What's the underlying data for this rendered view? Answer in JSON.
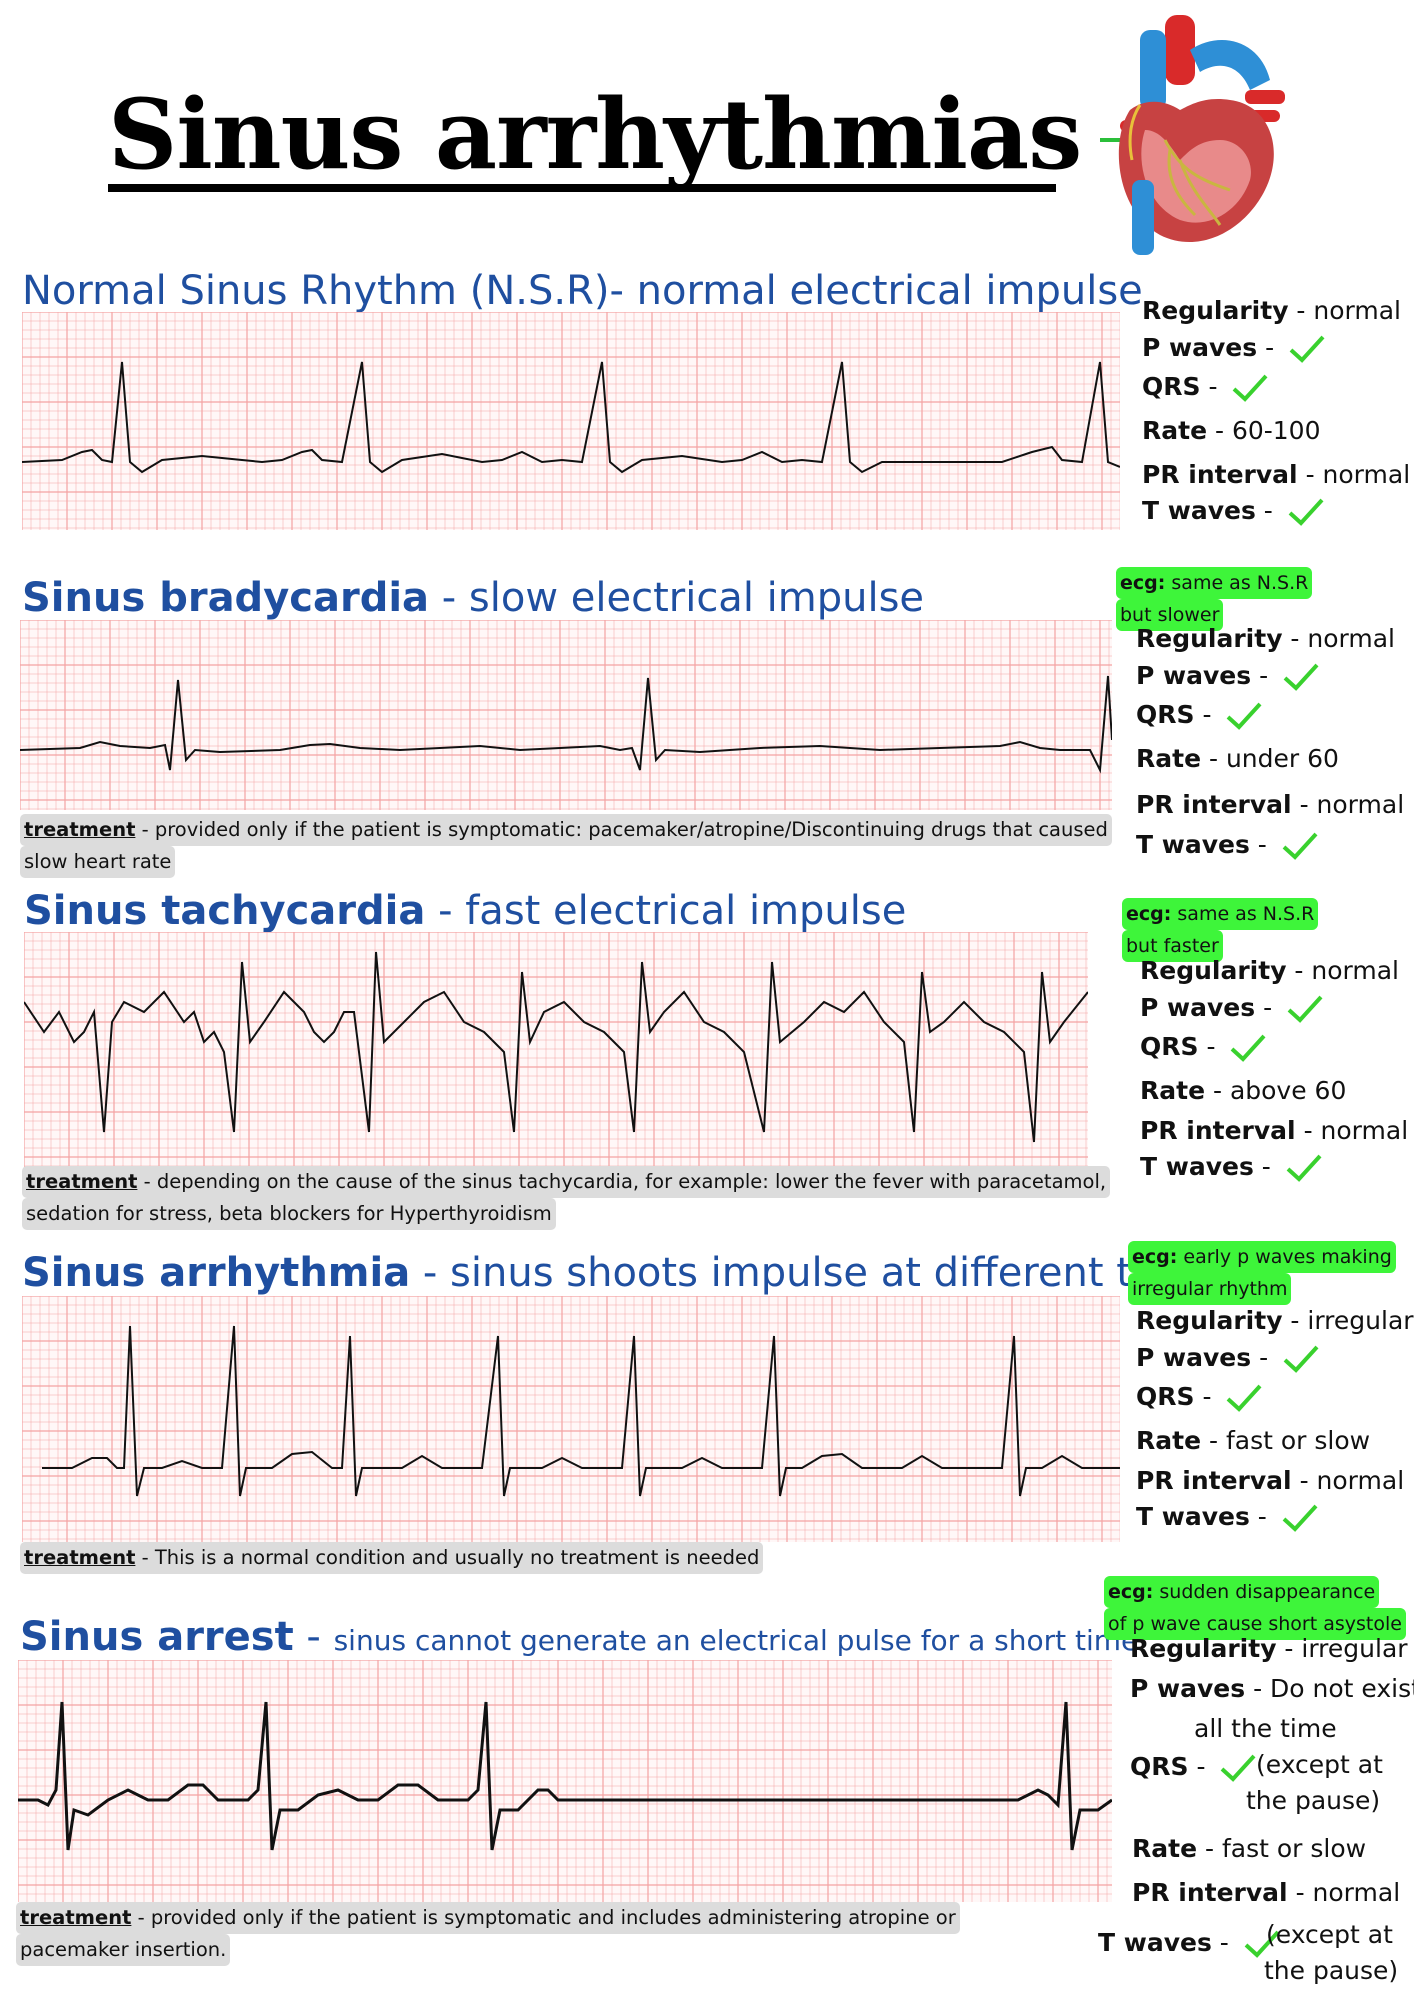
{
  "title": "Sinus arrhythmias",
  "colors": {
    "heading": "#1f4fa0",
    "highlight": "#3ef53a",
    "grid": "#f3a3a3",
    "check": "#39d12e"
  },
  "icons": [
    "heart-icon",
    "check-icon"
  ],
  "sections": [
    {
      "name_bold": "Normal Sinus Rhythm (N.S.R)",
      "name_rest": "- normal electrical impulse",
      "ecg_note": null,
      "props": [
        {
          "label": "Regularity",
          "value": " - normal"
        },
        {
          "label": "P waves",
          "value": " - "
        },
        {
          "label": "QRS",
          "value": " - "
        },
        {
          "label": "Rate",
          "value": " - 60-100"
        },
        {
          "label": "PR interval",
          "value": " - normal"
        },
        {
          "label": "T waves",
          "value": " - "
        }
      ],
      "treatment": null
    },
    {
      "name_bold": "Sinus bradycardia",
      "name_rest": " - slow electrical impulse",
      "ecg_note": {
        "label": "ecg:",
        "line1": " same as N.S.R",
        "line2": "but slower"
      },
      "props": [
        {
          "label": "Regularity",
          "value": " - normal"
        },
        {
          "label": "P waves",
          "value": " - "
        },
        {
          "label": "QRS",
          "value": " - "
        },
        {
          "label": "Rate",
          "value": " - under 60"
        },
        {
          "label": "PR interval",
          "value": " - normal"
        },
        {
          "label": "T waves",
          "value": " - "
        }
      ],
      "treatment": {
        "label": "treatment",
        "line1": " - provided only if the patient is symptomatic: pacemaker/atropine/Discontinuing drugs that caused",
        "line2": "slow heart rate"
      }
    },
    {
      "name_bold": "Sinus tachycardia",
      "name_rest": " - fast electrical impulse",
      "ecg_note": {
        "label": "ecg:",
        "line1": " same as N.S.R",
        "line2": "but faster"
      },
      "props": [
        {
          "label": "Regularity",
          "value": " - normal"
        },
        {
          "label": "P waves",
          "value": " - "
        },
        {
          "label": "QRS",
          "value": " - "
        },
        {
          "label": "Rate",
          "value": " - above 60"
        },
        {
          "label": "PR interval",
          "value": " - normal"
        },
        {
          "label": "T waves",
          "value": " - "
        }
      ],
      "treatment": {
        "label": "treatment",
        "line1": " - depending on the cause of the sinus tachycardia, for example: lower the fever with paracetamol,",
        "line2": "sedation for stress, beta blockers for Hyperthyroidism"
      }
    },
    {
      "name_bold": "Sinus arrhythmia",
      "name_rest": " - sinus shoots impulse at different times",
      "ecg_note": {
        "label": "ecg:",
        "line1": " early p waves making",
        "line2": "irregular rhythm"
      },
      "props": [
        {
          "label": "Regularity",
          "value": " - irregular"
        },
        {
          "label": "P waves",
          "value": " - "
        },
        {
          "label": "QRS",
          "value": " - "
        },
        {
          "label": "Rate",
          "value": " - fast or slow"
        },
        {
          "label": "PR interval",
          "value": " - normal"
        },
        {
          "label": "T waves",
          "value": " - "
        }
      ],
      "treatment": {
        "label": "treatment",
        "line1": " - This is a normal condition and usually no treatment is needed",
        "line2": ""
      }
    },
    {
      "name_bold": "Sinus arrest",
      "name_rest": " - ",
      "name_small": "sinus cannot generate an electrical pulse for a short time",
      "ecg_note": {
        "label": "ecg:",
        "line1": " sudden disappearance",
        "line2": "of p wave cause short asystole"
      },
      "props": [
        {
          "label": "Regularity",
          "value": " - irregular"
        },
        {
          "label": "P waves",
          "value": "  - Do not exist"
        },
        {
          "label": "",
          "value": "all the time"
        },
        {
          "label": "QRS",
          "value": " - "
        },
        {
          "label": "",
          "value": "(except at"
        },
        {
          "label": "",
          "value": "the pause)"
        },
        {
          "label": "Rate",
          "value": " - fast or slow"
        },
        {
          "label": "PR interval",
          "value": " - normal"
        },
        {
          "label": "T waves",
          "value": " - "
        },
        {
          "label": "",
          "value": "(except at"
        },
        {
          "label": "",
          "value": "the pause)"
        }
      ],
      "treatment": {
        "label": "treatment",
        "line1": " - provided only if the patient is symptomatic and includes administering atropine or",
        "line2": "pacemaker insertion."
      }
    }
  ]
}
